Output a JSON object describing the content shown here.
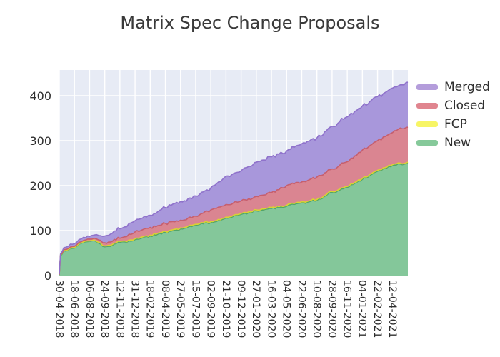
{
  "title": "Matrix Spec Change Proposals",
  "chart_data": {
    "type": "area",
    "stacked": true,
    "title": "Matrix Spec Change Proposals",
    "xlabel": "",
    "ylabel": "",
    "ylim": [
      0,
      457
    ],
    "y_ticks": [
      0,
      100,
      200,
      300,
      400
    ],
    "grid": true,
    "grid_color": "#ffffff",
    "plot_bg": "#e7ebf5",
    "text_color": "#2f2f2f",
    "legend_position": "outside-top-right",
    "x_tick_labels": [
      "30-04-2018",
      "18-06-2018",
      "06-08-2018",
      "24-09-2018",
      "12-11-2018",
      "31-12-2018",
      "18-02-2019",
      "08-04-2019",
      "27-05-2019",
      "15-07-2019",
      "02-09-2019",
      "21-10-2019",
      "09-12-2019",
      "27-01-2020",
      "16-03-2020",
      "04-05-2020",
      "22-06-2020",
      "10-08-2020",
      "28-09-2020",
      "16-11-2020",
      "04-01-2021",
      "22-02-2021",
      "12-04-2021"
    ],
    "sample_t": [
      0,
      0.08,
      0.3,
      0.6,
      1,
      1.3,
      1.6,
      2,
      2.3,
      2.6,
      3,
      3.5,
      4,
      4.3,
      4.6,
      5,
      5.5,
      6,
      6.5,
      7,
      7.5,
      8,
      8.5,
      9,
      9.5,
      10,
      10.5,
      11,
      11.5,
      12,
      12.5,
      13,
      13.5,
      14,
      14.5,
      15,
      15.5,
      16,
      16.5,
      17,
      17.5,
      18,
      18.5,
      19,
      19.5,
      20,
      20.5,
      21,
      21.5,
      22,
      22.5,
      23
    ],
    "series": [
      {
        "name": "New",
        "fill": "#84c79a",
        "line": "#51a469",
        "values": [
          2,
          44,
          55,
          57,
          61,
          70,
          74,
          76,
          78,
          72,
          64,
          67,
          74,
          75,
          77,
          80,
          84,
          88,
          92,
          96,
          100,
          104,
          108,
          112,
          115,
          118,
          123,
          128,
          132,
          136,
          140,
          144,
          146,
          149,
          151,
          154,
          158,
          162,
          164,
          167,
          176,
          185,
          190,
          196,
          205,
          214,
          223,
          232,
          238,
          245,
          248,
          250
        ]
      },
      {
        "name": "FCP",
        "fill": "#f2ef58",
        "line": "#d9d233",
        "values": [
          0,
          1,
          1,
          1,
          1,
          1,
          1,
          1,
          1,
          2,
          2,
          2,
          2,
          2,
          2,
          2,
          2,
          2,
          2,
          2,
          2,
          2,
          2,
          2,
          2,
          2,
          2,
          2,
          2,
          2,
          2,
          2,
          2,
          2,
          2,
          2,
          2,
          2,
          2,
          2,
          2,
          2,
          2,
          2,
          2,
          2,
          2,
          2,
          2,
          2,
          2,
          2
        ]
      },
      {
        "name": "Closed",
        "fill": "#da8591",
        "line": "#c65f6e",
        "values": [
          0,
          1,
          2,
          2,
          3,
          3,
          3,
          4,
          4,
          5,
          7,
          7,
          7,
          9,
          13,
          15,
          16,
          17,
          17,
          18,
          18,
          17,
          18,
          18,
          22,
          26,
          27,
          28,
          28,
          28,
          29,
          30,
          31,
          33,
          38,
          44,
          44,
          44,
          47,
          50,
          50,
          50,
          53,
          55,
          59,
          63,
          64,
          66,
          69,
          71,
          78,
          78
        ]
      },
      {
        "name": "Merged",
        "fill": "#a897db",
        "line": "#8f72cb",
        "values": [
          1,
          2,
          4,
          5,
          6,
          6,
          7,
          6,
          7,
          10,
          15,
          18,
          21,
          22,
          24,
          25,
          26,
          27,
          31,
          35,
          39,
          42,
          43,
          45,
          47,
          49,
          56,
          63,
          65,
          67,
          72,
          76,
          78,
          80,
          79,
          77,
          81,
          85,
          86,
          87,
          91,
          95,
          97,
          100,
          99,
          98,
          98,
          98,
          98,
          99,
          96,
          100
        ]
      }
    ],
    "legend": [
      {
        "label": "Merged",
        "color": "#b49ddb"
      },
      {
        "label": "Closed",
        "color": "#e0858f"
      },
      {
        "label": "FCP",
        "color": "#f7f565"
      },
      {
        "label": "New",
        "color": "#86c99a"
      }
    ]
  }
}
